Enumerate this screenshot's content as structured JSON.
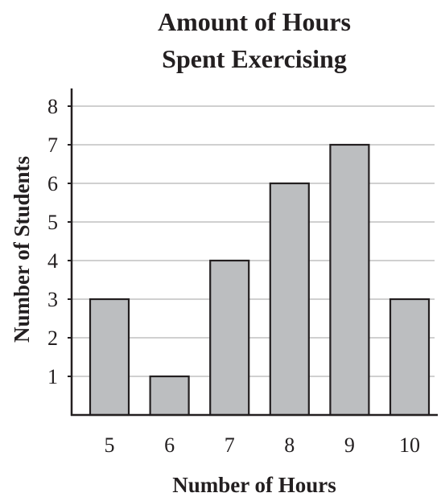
{
  "chart_data": {
    "type": "bar",
    "title_lines": [
      "Amount of Hours",
      "Spent Exercising"
    ],
    "title": "Amount of Hours Spent Exercising",
    "xlabel": "Number of Hours",
    "ylabel": "Number of Students",
    "categories": [
      "5",
      "6",
      "7",
      "8",
      "9",
      "10"
    ],
    "values": [
      3,
      1,
      4,
      6,
      7,
      3
    ],
    "ylim": [
      0,
      8
    ],
    "yticks": [
      1,
      2,
      3,
      4,
      5,
      6,
      7,
      8
    ],
    "grid": true,
    "colors": {
      "bar_fill": "#bcbec0",
      "bar_stroke": "#231f20",
      "grid": "#b3b3b3",
      "axis": "#231f20",
      "text": "#231f20"
    }
  }
}
